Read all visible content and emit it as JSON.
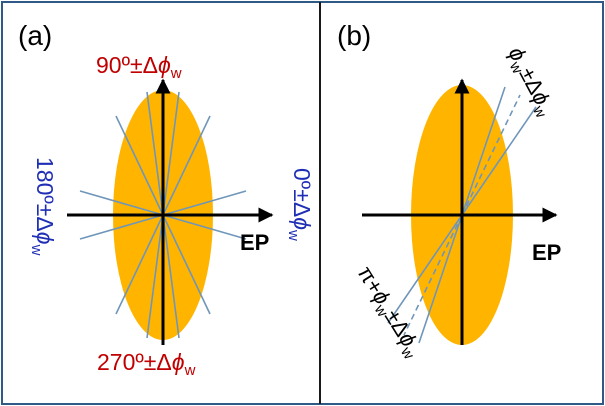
{
  "colors": {
    "ellipse": "#FFB400",
    "frame": "#2F5A87",
    "divider": "#1A1A1A",
    "axis": "#000000",
    "wedge_line": "#6F96BA",
    "red_text": "#C00000",
    "blue_text": "#1F2FB5"
  },
  "panel_a": {
    "label": "(a)",
    "axis_label": "EP",
    "top_prefix": "90º±Δ",
    "bottom_prefix": "270º±Δ",
    "left_prefix": "180º±Δ",
    "right_prefix": "0º±Δ",
    "phi": "ϕ",
    "w": "w"
  },
  "panel_b": {
    "label": "(b)",
    "axis_label": "EP",
    "upper_phi": "ϕ",
    "upper_w": "w",
    "upper_pm": "±Δ",
    "lower_prefix": "π+",
    "lower_phi": "ϕ",
    "lower_w": "w",
    "lower_pm": "±Δ"
  }
}
